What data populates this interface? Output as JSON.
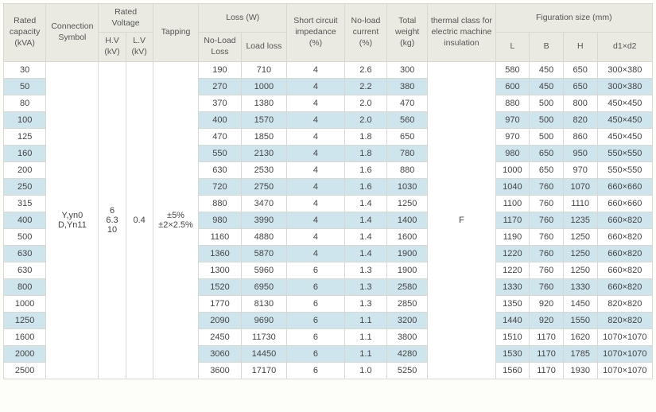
{
  "headers": {
    "rated_capacity": "Rated capacity (kVA)",
    "connection_symbol": "Connection Symbol",
    "rated_voltage": "Rated Voltage",
    "hv": "H.V (kV)",
    "lv": "L.V (kV)",
    "tapping": "Tapping",
    "loss": "Loss (W)",
    "no_load_loss": "No-Load Loss",
    "load_loss": "Load loss",
    "short_circuit": "Short circuit impedance (%)",
    "no_load_current": "No-load current (%)",
    "total_weight": "Total weight (kg)",
    "thermal": "thermal class for electric machine insulation",
    "figuration": "Figuration size (mm)",
    "L": "L",
    "B": "B",
    "H": "H",
    "d1d2": "d1×d2"
  },
  "shared": {
    "connection": "Y,yn0\nD,Yn11",
    "hv": "6\n6.3\n10",
    "lv": "0.4",
    "tapping": "±5%\n±2×2.5%",
    "thermal": "F"
  },
  "rows": [
    {
      "kva": "30",
      "nol": "190",
      "ll": "710",
      "imp": "4",
      "nolc": "2.6",
      "tw": "300",
      "L": "580",
      "B": "450",
      "H": "650",
      "d": "300×380"
    },
    {
      "kva": "50",
      "nol": "270",
      "ll": "1000",
      "imp": "4",
      "nolc": "2.2",
      "tw": "380",
      "L": "600",
      "B": "450",
      "H": "650",
      "d": "300×380"
    },
    {
      "kva": "80",
      "nol": "370",
      "ll": "1380",
      "imp": "4",
      "nolc": "2.0",
      "tw": "470",
      "L": "880",
      "B": "500",
      "H": "800",
      "d": "450×450"
    },
    {
      "kva": "100",
      "nol": "400",
      "ll": "1570",
      "imp": "4",
      "nolc": "2.0",
      "tw": "560",
      "L": "970",
      "B": "500",
      "H": "820",
      "d": "450×450"
    },
    {
      "kva": "125",
      "nol": "470",
      "ll": "1850",
      "imp": "4",
      "nolc": "1.8",
      "tw": "650",
      "L": "970",
      "B": "500",
      "H": "860",
      "d": "450×450"
    },
    {
      "kva": "160",
      "nol": "550",
      "ll": "2130",
      "imp": "4",
      "nolc": "1.8",
      "tw": "780",
      "L": "980",
      "B": "650",
      "H": "950",
      "d": "550×550"
    },
    {
      "kva": "200",
      "nol": "630",
      "ll": "2530",
      "imp": "4",
      "nolc": "1.6",
      "tw": "880",
      "L": "1000",
      "B": "650",
      "H": "970",
      "d": "550×550"
    },
    {
      "kva": "250",
      "nol": "720",
      "ll": "2750",
      "imp": "4",
      "nolc": "1.6",
      "tw": "1030",
      "L": "1040",
      "B": "760",
      "H": "1070",
      "d": "660×660"
    },
    {
      "kva": "315",
      "nol": "880",
      "ll": "3470",
      "imp": "4",
      "nolc": "1.4",
      "tw": "1250",
      "L": "1100",
      "B": "760",
      "H": "1110",
      "d": "660×660"
    },
    {
      "kva": "400",
      "nol": "980",
      "ll": "3990",
      "imp": "4",
      "nolc": "1.4",
      "tw": "1400",
      "L": "1170",
      "B": "760",
      "H": "1235",
      "d": "660×820"
    },
    {
      "kva": "500",
      "nol": "1160",
      "ll": "4880",
      "imp": "4",
      "nolc": "1.4",
      "tw": "1600",
      "L": "1190",
      "B": "760",
      "H": "1250",
      "d": "660×820"
    },
    {
      "kva": "630",
      "nol": "1360",
      "ll": "5870",
      "imp": "4",
      "nolc": "1.4",
      "tw": "1900",
      "L": "1220",
      "B": "760",
      "H": "1250",
      "d": "660×820"
    },
    {
      "kva": "630",
      "nol": "1300",
      "ll": "5960",
      "imp": "6",
      "nolc": "1.3",
      "tw": "1900",
      "L": "1220",
      "B": "760",
      "H": "1250",
      "d": "660×820"
    },
    {
      "kva": "800",
      "nol": "1520",
      "ll": "6950",
      "imp": "6",
      "nolc": "1.3",
      "tw": "2580",
      "L": "1330",
      "B": "760",
      "H": "1330",
      "d": "660×820"
    },
    {
      "kva": "1000",
      "nol": "1770",
      "ll": "8130",
      "imp": "6",
      "nolc": "1.3",
      "tw": "2850",
      "L": "1350",
      "B": "920",
      "H": "1450",
      "d": "820×820"
    },
    {
      "kva": "1250",
      "nol": "2090",
      "ll": "9690",
      "imp": "6",
      "nolc": "1.1",
      "tw": "3200",
      "L": "1440",
      "B": "920",
      "H": "1550",
      "d": "820×820"
    },
    {
      "kva": "1600",
      "nol": "2450",
      "ll": "11730",
      "imp": "6",
      "nolc": "1.1",
      "tw": "3800",
      "L": "1510",
      "B": "1170",
      "H": "1620",
      "d": "1070×1070"
    },
    {
      "kva": "2000",
      "nol": "3060",
      "ll": "14450",
      "imp": "6",
      "nolc": "1.1",
      "tw": "4280",
      "L": "1530",
      "B": "1170",
      "H": "1785",
      "d": "1070×1070"
    },
    {
      "kva": "2500",
      "nol": "3600",
      "ll": "17170",
      "imp": "6",
      "nolc": "1.0",
      "tw": "5250",
      "L": "1560",
      "B": "1170",
      "H": "1930",
      "d": "1070×1070"
    }
  ]
}
